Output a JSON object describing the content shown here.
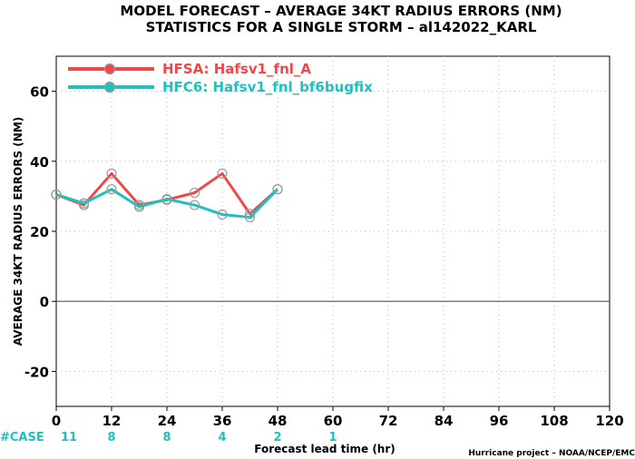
{
  "chart_data": {
    "type": "line",
    "title_line1": "MODEL FORECAST – AVERAGE 34KT RADIUS ERRORS (NM)",
    "title_line2": "STATISTICS FOR A SINGLE STORM – al142022_KARL",
    "xlabel": "Forecast lead time (hr)",
    "ylabel": "AVERAGE 34KT RADIUS ERRORS (NM)",
    "xlim": [
      0,
      120
    ],
    "ylim": [
      -30,
      70
    ],
    "xticks": [
      0,
      12,
      24,
      36,
      48,
      60,
      72,
      84,
      96,
      108,
      120
    ],
    "yticks": [
      -20,
      0,
      20,
      40,
      60
    ],
    "grid": true,
    "legend_position": "top-left",
    "series": [
      {
        "name": "HFSA: Hafsv1_fnl_A",
        "color": "#f04848",
        "x": [
          0,
          6,
          12,
          18,
          24,
          30,
          36,
          42,
          48
        ],
        "y": [
          30.5,
          27.5,
          36.5,
          27.5,
          29,
          31,
          36.5,
          25,
          32
        ]
      },
      {
        "name": "HFC6: Hafsv1_fnl_bf6bugfix",
        "color": "#20c0c0",
        "x": [
          0,
          6,
          12,
          18,
          24,
          30,
          36,
          42,
          48
        ],
        "y": [
          30.5,
          28,
          32,
          27,
          29.2,
          27.5,
          24.8,
          24,
          32
        ]
      }
    ],
    "case_label": "#CASE",
    "case_counts": [
      {
        "x": 0,
        "label": "11"
      },
      {
        "x": 12,
        "label": "8"
      },
      {
        "x": 24,
        "label": "8"
      },
      {
        "x": 36,
        "label": "4"
      },
      {
        "x": 48,
        "label": "2"
      },
      {
        "x": 60,
        "label": "1"
      }
    ],
    "credit": "Hurricane project – NOAA/NCEP/EMC"
  }
}
